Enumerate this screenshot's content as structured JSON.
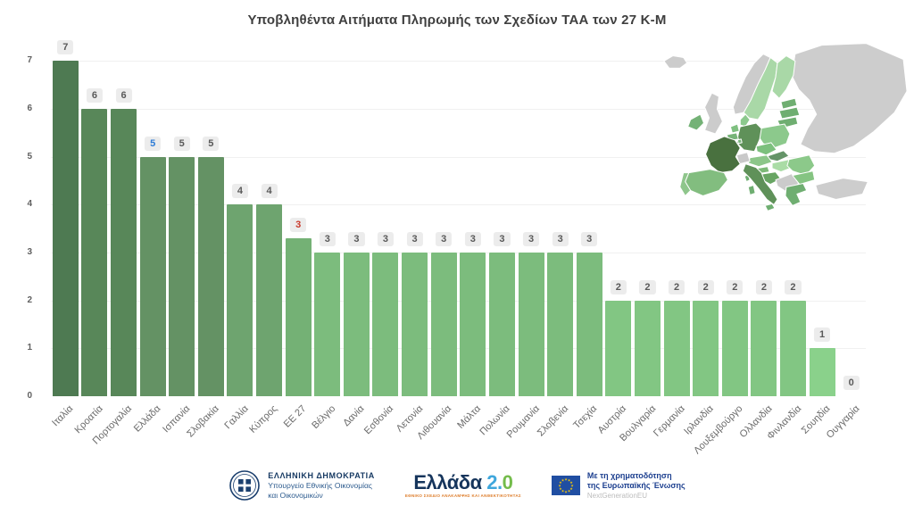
{
  "title": "Υποβληθέντα Αιτήματα Πληρωμής των Σχεδίων ΤΑΑ των 27 Κ-Μ",
  "chart_data": {
    "type": "bar",
    "title": "Υποβληθέντα Αιτήματα Πληρωμής των Σχεδίων ΤΑΑ των 27 Κ-Μ",
    "categories": [
      "Ιταλία",
      "Κροατία",
      "Πορτογαλία",
      "Ελλάδα",
      "Ισπανία",
      "Σλοβακία",
      "Γαλλία",
      "Κύπρος",
      "ΕΕ 27",
      "Βέλγιο",
      "Δανία",
      "Εσθονία",
      "Λετονία",
      "Λιθουανία",
      "Μάλτα",
      "Πολωνία",
      "Ρουμανία",
      "Σλοβενία",
      "Τσεχία",
      "Αυστρία",
      "Βουλγαρία",
      "Γερμανία",
      "Ιρλανδία",
      "Λουξεμβούργο",
      "Ολλανδία",
      "Φινλανδία",
      "Σουηδία",
      "Ουγγαρία"
    ],
    "values": [
      7,
      6,
      6,
      5,
      5,
      5,
      4,
      4,
      3,
      3,
      3,
      3,
      3,
      3,
      3,
      3,
      3,
      3,
      3,
      2,
      2,
      2,
      2,
      2,
      2,
      2,
      1,
      0
    ],
    "bar_heights": [
      7,
      6,
      6,
      5,
      5,
      5,
      4,
      4,
      3.3,
      3,
      3,
      3,
      3,
      3,
      3,
      3,
      3,
      3,
      3,
      2,
      2,
      2,
      2,
      2,
      2,
      2,
      1,
      0
    ],
    "bar_colors": [
      "#4e7a52",
      "#588759",
      "#588759",
      "#649264",
      "#649264",
      "#649264",
      "#6ea46f",
      "#6ea46f",
      "#74b175",
      "#7cbc7d",
      "#7cbc7d",
      "#7cbc7d",
      "#7cbc7d",
      "#7cbc7d",
      "#7cbc7d",
      "#7cbc7d",
      "#7cbc7d",
      "#7cbc7d",
      "#7cbc7d",
      "#82c683",
      "#82c683",
      "#82c683",
      "#82c683",
      "#82c683",
      "#82c683",
      "#82c683",
      "#8ad18b",
      "#8ad18b"
    ],
    "value_label_colors": [
      "#595959",
      "#595959",
      "#595959",
      "#2e7cd6",
      "#595959",
      "#595959",
      "#595959",
      "#595959",
      "#c9392b",
      "#595959",
      "#595959",
      "#595959",
      "#595959",
      "#595959",
      "#595959",
      "#595959",
      "#595959",
      "#595959",
      "#595959",
      "#595959",
      "#595959",
      "#595959",
      "#595959",
      "#595959",
      "#595959",
      "#595959",
      "#595959",
      "#595959"
    ],
    "xlabel": "",
    "ylabel": "",
    "ylim": [
      0,
      7
    ],
    "yticks": [
      0,
      1,
      2,
      3,
      4,
      5,
      6,
      7
    ],
    "grid": true,
    "legend": "none"
  },
  "map": {
    "description": "choropleth-of-europe",
    "gray": "#cccccc",
    "fills": {
      "iceland": "#cccccc",
      "norway": "#cccccc",
      "sweden": "#a9d8a7",
      "finland": "#a9d8a7",
      "russia_east": "#cdcdcd",
      "uk": "#cccccc",
      "ireland": "#74b276",
      "denmark": "#8cc98d",
      "estonia": "#6fae71",
      "latvia": "#6fae71",
      "lithuania": "#6fae71",
      "poland": "#8cc98c",
      "germany": "#5f9159",
      "netherlands": "#7fc080",
      "belgium": "#77b478",
      "luxembourg": "#77b478",
      "czechia": "#7cc07d",
      "slovakia": "#659468",
      "austria": "#8cc689",
      "switzerland": "#c9c9c9",
      "hungary": "#aadca6",
      "slovenia": "#7cb977",
      "croatia": "#68a563",
      "balkans": "#cbcbcb",
      "romania": "#8cc98a",
      "bulgaria": "#85c482",
      "greece": "#6fae71",
      "turkey": "#cdcdcd",
      "france": "#49713f",
      "corsica": "#6fae71",
      "italy": "#5f9159",
      "sicily": "#6fae71",
      "sardinia": "#6fae71",
      "spain": "#82bd7f",
      "portugal": "#8fc68c"
    }
  },
  "footer": {
    "ministry": {
      "line1": "ΕΛΛΗΝΙΚΗ ΔΗΜΟΚΡΑΤΙΑ",
      "line2": "Υπουργείο Εθνικής Οικονομίας",
      "line3": "και Οικονομικών"
    },
    "greece20": {
      "word": "Ελλάδα ",
      "two": "2.",
      "zero": "0",
      "subtitle": "ΕΘΝΙΚΟ ΣΧΕΔΙΟ ΑΝΑΚΑΜΨΗΣ ΚΑΙ ΑΝΘΕΚΤΙΚΟΤΗΤΑΣ"
    },
    "eu": {
      "line1": "Με τη χρηματοδότηση",
      "line2": "της Ευρωπαϊκής Ένωσης",
      "line3": "NextGenerationEU",
      "flag_blue": "#204ea2",
      "star_yellow": "#ffcc00"
    }
  }
}
